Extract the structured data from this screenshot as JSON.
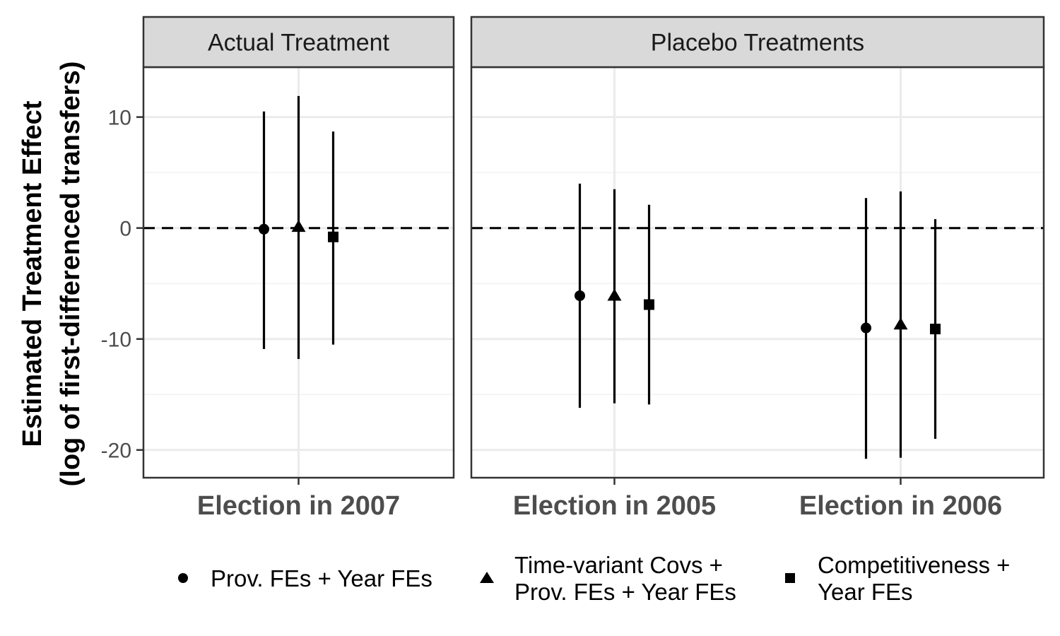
{
  "chart_data": {
    "type": "scatter",
    "subtype": "point-range",
    "ylabel": [
      "Estimated Treatment Effect",
      "(log of first-differenced transfers)"
    ],
    "ylim": [
      -22.5,
      14.5
    ],
    "yticks": [
      10,
      0,
      -10,
      -20
    ],
    "ytick_labels": [
      "10",
      "0",
      "-10",
      "-20"
    ],
    "reference_line": {
      "y": 0,
      "style": "dashed"
    },
    "grid": true,
    "panels": [
      {
        "strip": "Actual Treatment",
        "categories": [
          "Election in 2007"
        ],
        "points": [
          {
            "category": "Election in 2007",
            "series": "Prov. FEs + Year FEs",
            "estimate": -0.1,
            "lower": -10.9,
            "upper": 10.5
          },
          {
            "category": "Election in 2007",
            "series": "Time-variant Covs + Prov. FEs + Year FEs",
            "estimate": 0.1,
            "lower": -11.8,
            "upper": 11.9
          },
          {
            "category": "Election in 2007",
            "series": "Competitiveness + Year FEs",
            "estimate": -0.8,
            "lower": -10.5,
            "upper": 8.7
          }
        ]
      },
      {
        "strip": "Placebo Treatments",
        "categories": [
          "Election in 2005",
          "Election in 2006"
        ],
        "points": [
          {
            "category": "Election in 2005",
            "series": "Prov. FEs + Year FEs",
            "estimate": -6.1,
            "lower": -16.2,
            "upper": 4.0
          },
          {
            "category": "Election in 2005",
            "series": "Time-variant Covs + Prov. FEs + Year FEs",
            "estimate": -6.1,
            "lower": -15.8,
            "upper": 3.5
          },
          {
            "category": "Election in 2005",
            "series": "Competitiveness + Year FEs",
            "estimate": -6.9,
            "lower": -15.9,
            "upper": 2.1
          },
          {
            "category": "Election in 2006",
            "series": "Prov. FEs + Year FEs",
            "estimate": -9.0,
            "lower": -20.8,
            "upper": 2.7
          },
          {
            "category": "Election in 2006",
            "series": "Time-variant Covs + Prov. FEs + Year FEs",
            "estimate": -8.7,
            "lower": -20.7,
            "upper": 3.3
          },
          {
            "category": "Election in 2006",
            "series": "Competitiveness + Year FEs",
            "estimate": -9.1,
            "lower": -19.0,
            "upper": 0.8
          }
        ]
      }
    ],
    "series": [
      {
        "name": "Prov. FEs + Year FEs",
        "legend_lines": [
          "Prov. FEs + Year FEs"
        ],
        "shape": "circle"
      },
      {
        "name": "Time-variant Covs + Prov. FEs + Year FEs",
        "legend_lines": [
          "Time-variant Covs +",
          "Prov. FEs + Year FEs"
        ],
        "shape": "triangle"
      },
      {
        "name": "Competitiveness + Year FEs",
        "legend_lines": [
          "Competitiveness +",
          "Year FEs"
        ],
        "shape": "square"
      }
    ],
    "legend_position": "bottom",
    "colors": {
      "marks": "#000000",
      "strip_fill": "#d9d9d9",
      "border": "#333333",
      "grid": "#ebebeb",
      "text": "#4d4d4d"
    }
  }
}
